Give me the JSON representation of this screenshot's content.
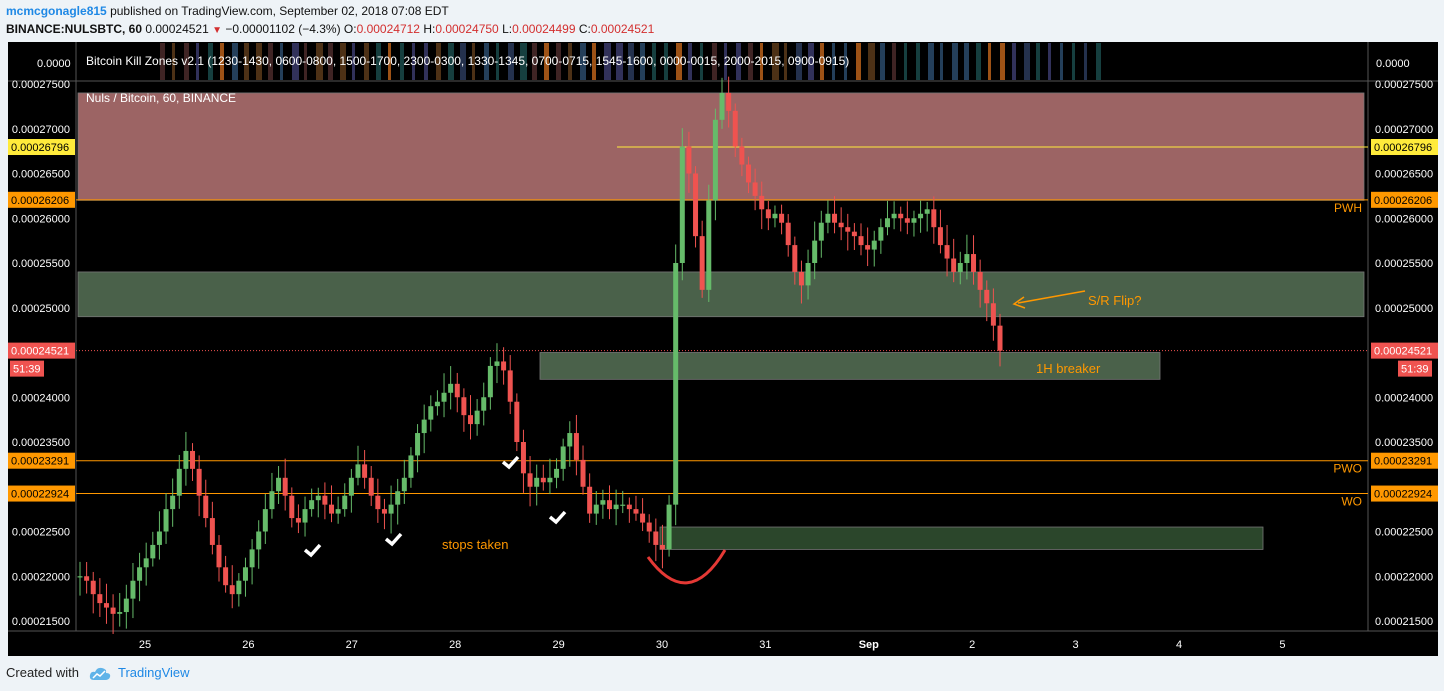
{
  "header": {
    "user": "mcmcgonagle815",
    "published": "published on TradingView.com, September 02, 2018 07:08 EDT",
    "symbol": "BINANCE:NULSBTC, 60",
    "last": "0.00024521",
    "change": "−0.00001102 (−4.3%)",
    "o_label": "O:",
    "o_value": "0.00024712",
    "h_label": "H:",
    "h_value": "0.00024750",
    "l_label": "L:",
    "l_value": "0.00024499",
    "c_label": "C:",
    "c_value": "0.00024521"
  },
  "indicator": {
    "label": "Bitcoin Kill Zones v2.1 (1230-1430, 0600-0800, 1500-1700, 2300-0300, 1330-1345, 0700-0715, 1545-1600, 0000-0015, 2000-2015, 0900-0915)",
    "value": "0.0000"
  },
  "chart_title": "Nuls / Bitcoin, 60, BINANCE",
  "chart_data": {
    "type": "candlestick",
    "y_ticks": [
      "0.00027500",
      "0.00027000",
      "0.00026500",
      "0.00026000",
      "0.00025500",
      "0.00025000",
      "0.00024000",
      "0.00023500",
      "0.00022500",
      "0.00022000",
      "0.00021500"
    ],
    "ylim": [
      0.000214,
      0.000275
    ],
    "x_ticks": [
      "25",
      "26",
      "27",
      "28",
      "29",
      "30",
      "31",
      "Sep",
      "2",
      "3",
      "4",
      "5"
    ],
    "price_tags": [
      {
        "value": "0.00026796",
        "color": "#ffeb3b",
        "text_color": "#000000"
      },
      {
        "value": "0.00026206",
        "color": "#ff9800",
        "text_color": "#000000"
      },
      {
        "value": "0.00024521",
        "color": "#ef5350",
        "text_color": "#ffffff"
      },
      {
        "value": "51:39",
        "color": "#ef5350",
        "text_color": "#ffffff"
      },
      {
        "value": "0.00023291",
        "color": "#ff9800",
        "text_color": "#000000"
      },
      {
        "value": "0.00022924",
        "color": "#ff9800",
        "text_color": "#000000"
      }
    ],
    "levels": [
      {
        "label": "PWH",
        "value": 0.00026206
      },
      {
        "label": "PWO",
        "value": 0.00023291
      },
      {
        "label": "WO",
        "value": 0.00022924
      }
    ],
    "yellow_line": 0.00026796,
    "last_price": 0.00024521,
    "zones": [
      {
        "name": "upper-red-zone",
        "from": 0.000262,
        "to": 0.000274,
        "color": "#d88a8a"
      },
      {
        "name": "sr-flip-zone",
        "from": 0.000249,
        "to": 0.000254,
        "color": "#86b086"
      },
      {
        "name": "breaker-zone",
        "from": 0.000242,
        "to": 0.000245,
        "color": "#86b086"
      },
      {
        "name": "demand-zone",
        "from": 0.000223,
        "to": 0.0002255,
        "color": "#4f7f4f"
      }
    ],
    "annotations": {
      "sr_flip": "S/R Flip?",
      "breaker": "1H breaker",
      "stops": "stops taken"
    },
    "closes": [
      0.00022,
      0.0002195,
      0.000218,
      0.000217,
      0.0002165,
      0.0002158,
      0.000216,
      0.0002175,
      0.0002195,
      0.000221,
      0.000222,
      0.0002235,
      0.000225,
      0.0002275,
      0.000229,
      0.000232,
      0.000234,
      0.000232,
      0.000229,
      0.0002265,
      0.0002235,
      0.000221,
      0.000219,
      0.000218,
      0.0002195,
      0.000221,
      0.000223,
      0.000225,
      0.0002275,
      0.0002295,
      0.000231,
      0.000229,
      0.0002265,
      0.000226,
      0.0002275,
      0.0002285,
      0.000229,
      0.000228,
      0.000227,
      0.0002275,
      0.000229,
      0.000231,
      0.0002325,
      0.000231,
      0.000229,
      0.0002275,
      0.000227,
      0.000228,
      0.0002295,
      0.000231,
      0.0002335,
      0.000236,
      0.0002375,
      0.000239,
      0.0002395,
      0.0002405,
      0.0002415,
      0.00024,
      0.000238,
      0.000237,
      0.0002385,
      0.00024,
      0.0002435,
      0.000244,
      0.000243,
      0.0002395,
      0.000235,
      0.0002315,
      0.00023,
      0.000231,
      0.0002305,
      0.000231,
      0.000232,
      0.0002345,
      0.000236,
      0.000233,
      0.00023,
      0.000227,
      0.000228,
      0.0002285,
      0.0002275,
      0.000228,
      0.000228,
      0.0002275,
      0.000227,
      0.000226,
      0.000225,
      0.0002235,
      0.000223,
      0.000228,
      0.000255,
      0.000268,
      0.000265,
      0.000258,
      0.000252,
      0.000262,
      0.000271,
      0.000274,
      0.000272,
      0.000268,
      0.000266,
      0.000264,
      0.0002625,
      0.000261,
      0.00026,
      0.0002605,
      0.0002595,
      0.000257,
      0.000254,
      0.0002525,
      0.000255,
      0.0002575,
      0.0002595,
      0.0002605,
      0.0002595,
      0.000259,
      0.0002585,
      0.000258,
      0.000257,
      0.0002565,
      0.0002575,
      0.000259,
      0.00026,
      0.0002605,
      0.00026,
      0.0002595,
      0.00026,
      0.0002605,
      0.000261,
      0.000259,
      0.000257,
      0.0002555,
      0.000254,
      0.000255,
      0.000256,
      0.000254,
      0.000252,
      0.0002505,
      0.000248,
      0.0002452
    ]
  },
  "footer": {
    "created_with": "Created with",
    "brand": "TradingView"
  }
}
